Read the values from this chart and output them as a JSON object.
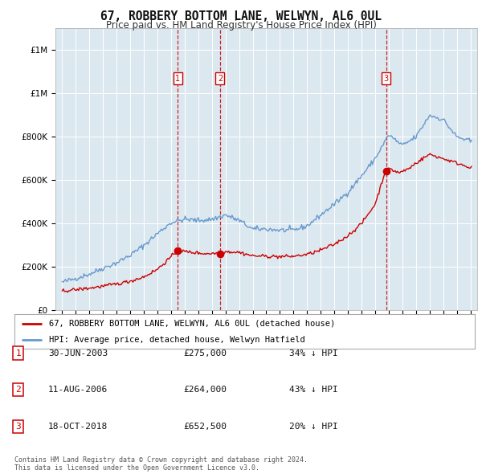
{
  "title": "67, ROBBERY BOTTOM LANE, WELWYN, AL6 0UL",
  "subtitle": "Price paid vs. HM Land Registry's House Price Index (HPI)",
  "legend_line1": "67, ROBBERY BOTTOM LANE, WELWYN, AL6 0UL (detached house)",
  "legend_line2": "HPI: Average price, detached house, Welwyn Hatfield",
  "footnote1": "Contains HM Land Registry data © Crown copyright and database right 2024.",
  "footnote2": "This data is licensed under the Open Government Licence v3.0.",
  "transactions": [
    {
      "num": 1,
      "date": "30-JUN-2003",
      "price": 275000,
      "pct": "34% ↓ HPI",
      "date_x": 2003.5
    },
    {
      "num": 2,
      "date": "11-AUG-2006",
      "price": 264000,
      "pct": "43% ↓ HPI",
      "date_x": 2006.6
    },
    {
      "num": 3,
      "date": "18-OCT-2018",
      "price": 652500,
      "pct": "20% ↓ HPI",
      "date_x": 2018.8
    }
  ],
  "red_color": "#cc0000",
  "blue_color": "#6699cc",
  "background_color": "#ffffff",
  "plot_bg_color": "#dce8f0",
  "grid_color": "#ffffff",
  "ylim": [
    0,
    1300000
  ],
  "yticks": [
    0,
    200000,
    400000,
    600000,
    800000,
    1000000,
    1200000
  ],
  "xlim_start": 1994.5,
  "xlim_end": 2025.5,
  "hpi_anchors_x": [
    1995,
    1996,
    1997,
    1998,
    1999,
    2000,
    2001,
    2002,
    2003,
    2004,
    2005,
    2006,
    2007,
    2008,
    2009,
    2010,
    2011,
    2012,
    2013,
    2014,
    2015,
    2016,
    2017,
    2018,
    2019,
    2020,
    2021,
    2022,
    2023,
    2024,
    2025
  ],
  "hpi_anchors_y": [
    130000,
    148000,
    168000,
    195000,
    220000,
    255000,
    300000,
    355000,
    405000,
    420000,
    415000,
    420000,
    440000,
    415000,
    375000,
    375000,
    370000,
    370000,
    390000,
    440000,
    490000,
    545000,
    620000,
    700000,
    810000,
    760000,
    800000,
    900000,
    880000,
    800000,
    780000
  ],
  "red_anchors_x": [
    1995,
    1996,
    1997,
    1998,
    1999,
    2000,
    2001,
    2002,
    2003.5,
    2004.5,
    2005.5,
    2006.6,
    2007,
    2008,
    2009,
    2010,
    2011,
    2012,
    2013,
    2014,
    2015,
    2016,
    2017,
    2018.0,
    2018.8,
    2019.2,
    2019.8,
    2020.5,
    2021,
    2022,
    2023,
    2024,
    2025
  ],
  "red_anchors_y": [
    90000,
    96000,
    103000,
    112000,
    122000,
    135000,
    155000,
    190000,
    275000,
    268000,
    262000,
    264000,
    272000,
    268000,
    252000,
    250000,
    248000,
    250000,
    258000,
    278000,
    305000,
    345000,
    400000,
    490000,
    652500,
    648000,
    635000,
    655000,
    680000,
    720000,
    700000,
    680000,
    660000
  ]
}
